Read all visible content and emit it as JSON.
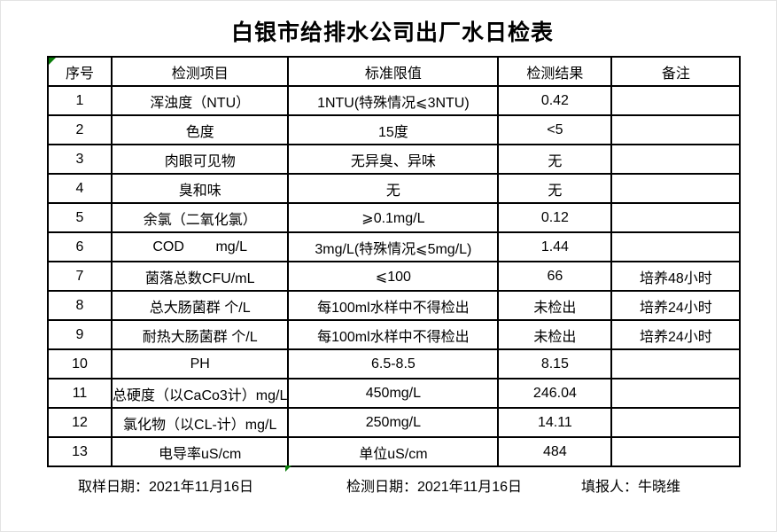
{
  "title": "白银市给排水公司出厂水日检表",
  "table": {
    "headers": [
      "序号",
      "检测项目",
      "标准限值",
      "检测结果",
      "备注"
    ],
    "rows": [
      {
        "no": "1",
        "item": "浑浊度（NTU）",
        "limit": "1NTU(特殊情况⩽3NTU)",
        "result": "0.42",
        "remark": ""
      },
      {
        "no": "2",
        "item": "色度",
        "limit": "15度",
        "result": "<5",
        "remark": ""
      },
      {
        "no": "3",
        "item": "肉眼可见物",
        "limit": "无异臭、异味",
        "result": "无",
        "remark": ""
      },
      {
        "no": "4",
        "item": "臭和味",
        "limit": "无",
        "result": "无",
        "remark": ""
      },
      {
        "no": "5",
        "item": "余氯（二氧化氯）",
        "limit": "⩾0.1mg/L",
        "result": "0.12",
        "remark": ""
      },
      {
        "no": "6",
        "item": "COD        mg/L",
        "limit": "3mg/L(特殊情况⩽5mg/L)",
        "result": "1.44",
        "remark": ""
      },
      {
        "no": "7",
        "item": "菌落总数CFU/mL",
        "limit": "⩽100",
        "result": "66",
        "remark": "培养48小时"
      },
      {
        "no": "8",
        "item": "总大肠菌群 个/L",
        "limit": "每100ml水样中不得检出",
        "result": "未检出",
        "remark": "培养24小时"
      },
      {
        "no": "9",
        "item": "耐热大肠菌群 个/L",
        "limit": "每100ml水样中不得检出",
        "result": "未检出",
        "remark": "培养24小时"
      },
      {
        "no": "10",
        "item": "PH",
        "limit": "6.5-8.5",
        "result": "8.15",
        "remark": ""
      },
      {
        "no": "11",
        "item": "总硬度（以CaCo3计）mg/L",
        "limit": "450mg/L",
        "result": "246.04",
        "remark": ""
      },
      {
        "no": "12",
        "item": "氯化物（以CL-计）mg/L",
        "limit": "250mg/L",
        "result": "14.11",
        "remark": ""
      },
      {
        "no": "13",
        "item": "电导率uS/cm",
        "limit": "单位uS/cm",
        "result": "484",
        "remark": ""
      }
    ]
  },
  "footer": {
    "sample_date": "取样日期：2021年11月16日",
    "test_date": "检测日期：2021年11月16日",
    "reporter": "填报人：牛晓维"
  },
  "colors": {
    "marker_green": "#0a7d0a",
    "border_black": "#000000"
  }
}
